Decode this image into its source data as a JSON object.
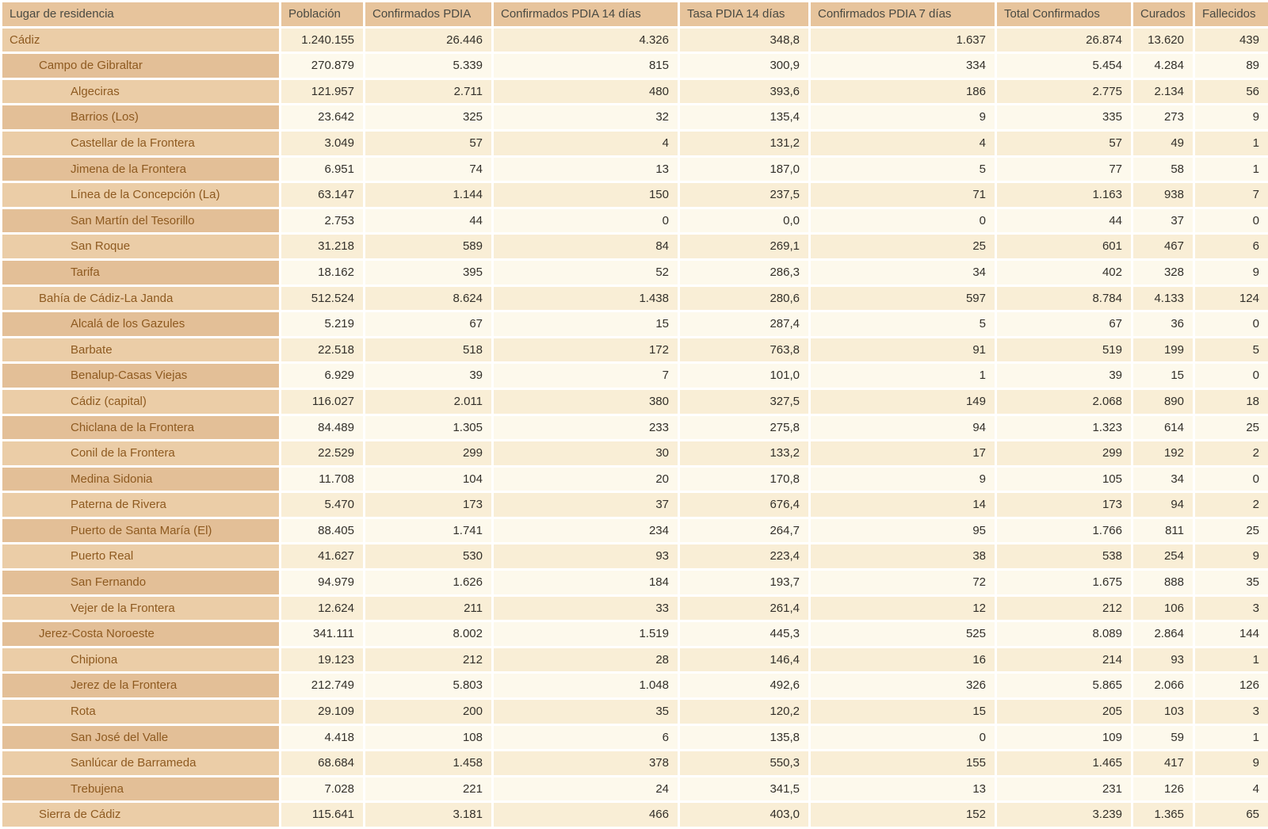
{
  "chart_data": {
    "type": "table",
    "columns": [
      "Lugar de residencia",
      "Población",
      "Confirmados PDIA",
      "Confirmados PDIA 14 días",
      "Tasa PDIA 14 días",
      "Confirmados PDIA 7 días",
      "Total Confirmados",
      "Curados",
      "Fallecidos"
    ],
    "rows": [
      {
        "name": "Cádiz",
        "level": 0,
        "values": [
          "1.240.155",
          "26.446",
          "4.326",
          "348,8",
          "1.637",
          "26.874",
          "13.620",
          "439"
        ]
      },
      {
        "name": "Campo de Gibraltar",
        "level": 1,
        "values": [
          "270.879",
          "5.339",
          "815",
          "300,9",
          "334",
          "5.454",
          "4.284",
          "89"
        ]
      },
      {
        "name": "Algeciras",
        "level": 2,
        "values": [
          "121.957",
          "2.711",
          "480",
          "393,6",
          "186",
          "2.775",
          "2.134",
          "56"
        ]
      },
      {
        "name": "Barrios (Los)",
        "level": 2,
        "values": [
          "23.642",
          "325",
          "32",
          "135,4",
          "9",
          "335",
          "273",
          "9"
        ]
      },
      {
        "name": "Castellar de la Frontera",
        "level": 2,
        "values": [
          "3.049",
          "57",
          "4",
          "131,2",
          "4",
          "57",
          "49",
          "1"
        ]
      },
      {
        "name": "Jimena de la Frontera",
        "level": 2,
        "values": [
          "6.951",
          "74",
          "13",
          "187,0",
          "5",
          "77",
          "58",
          "1"
        ]
      },
      {
        "name": "Línea de la Concepción (La)",
        "level": 2,
        "values": [
          "63.147",
          "1.144",
          "150",
          "237,5",
          "71",
          "1.163",
          "938",
          "7"
        ]
      },
      {
        "name": "San Martín del Tesorillo",
        "level": 2,
        "values": [
          "2.753",
          "44",
          "0",
          "0,0",
          "0",
          "44",
          "37",
          "0"
        ]
      },
      {
        "name": "San Roque",
        "level": 2,
        "values": [
          "31.218",
          "589",
          "84",
          "269,1",
          "25",
          "601",
          "467",
          "6"
        ]
      },
      {
        "name": "Tarifa",
        "level": 2,
        "values": [
          "18.162",
          "395",
          "52",
          "286,3",
          "34",
          "402",
          "328",
          "9"
        ]
      },
      {
        "name": "Bahía de Cádiz-La Janda",
        "level": 1,
        "values": [
          "512.524",
          "8.624",
          "1.438",
          "280,6",
          "597",
          "8.784",
          "4.133",
          "124"
        ]
      },
      {
        "name": "Alcalá de los Gazules",
        "level": 2,
        "values": [
          "5.219",
          "67",
          "15",
          "287,4",
          "5",
          "67",
          "36",
          "0"
        ]
      },
      {
        "name": "Barbate",
        "level": 2,
        "values": [
          "22.518",
          "518",
          "172",
          "763,8",
          "91",
          "519",
          "199",
          "5"
        ]
      },
      {
        "name": "Benalup-Casas Viejas",
        "level": 2,
        "values": [
          "6.929",
          "39",
          "7",
          "101,0",
          "1",
          "39",
          "15",
          "0"
        ]
      },
      {
        "name": "Cádiz (capital)",
        "level": 2,
        "values": [
          "116.027",
          "2.011",
          "380",
          "327,5",
          "149",
          "2.068",
          "890",
          "18"
        ]
      },
      {
        "name": "Chiclana de la Frontera",
        "level": 2,
        "values": [
          "84.489",
          "1.305",
          "233",
          "275,8",
          "94",
          "1.323",
          "614",
          "25"
        ]
      },
      {
        "name": "Conil de la Frontera",
        "level": 2,
        "values": [
          "22.529",
          "299",
          "30",
          "133,2",
          "17",
          "299",
          "192",
          "2"
        ]
      },
      {
        "name": "Medina Sidonia",
        "level": 2,
        "values": [
          "11.708",
          "104",
          "20",
          "170,8",
          "9",
          "105",
          "34",
          "0"
        ]
      },
      {
        "name": "Paterna de Rivera",
        "level": 2,
        "values": [
          "5.470",
          "173",
          "37",
          "676,4",
          "14",
          "173",
          "94",
          "2"
        ]
      },
      {
        "name": "Puerto de Santa María (El)",
        "level": 2,
        "values": [
          "88.405",
          "1.741",
          "234",
          "264,7",
          "95",
          "1.766",
          "811",
          "25"
        ]
      },
      {
        "name": "Puerto Real",
        "level": 2,
        "values": [
          "41.627",
          "530",
          "93",
          "223,4",
          "38",
          "538",
          "254",
          "9"
        ]
      },
      {
        "name": "San Fernando",
        "level": 2,
        "values": [
          "94.979",
          "1.626",
          "184",
          "193,7",
          "72",
          "1.675",
          "888",
          "35"
        ]
      },
      {
        "name": "Vejer de la Frontera",
        "level": 2,
        "values": [
          "12.624",
          "211",
          "33",
          "261,4",
          "12",
          "212",
          "106",
          "3"
        ]
      },
      {
        "name": "Jerez-Costa Noroeste",
        "level": 1,
        "values": [
          "341.111",
          "8.002",
          "1.519",
          "445,3",
          "525",
          "8.089",
          "2.864",
          "144"
        ]
      },
      {
        "name": "Chipiona",
        "level": 2,
        "values": [
          "19.123",
          "212",
          "28",
          "146,4",
          "16",
          "214",
          "93",
          "1"
        ]
      },
      {
        "name": "Jerez de la Frontera",
        "level": 2,
        "values": [
          "212.749",
          "5.803",
          "1.048",
          "492,6",
          "326",
          "5.865",
          "2.066",
          "126"
        ]
      },
      {
        "name": "Rota",
        "level": 2,
        "values": [
          "29.109",
          "200",
          "35",
          "120,2",
          "15",
          "205",
          "103",
          "3"
        ]
      },
      {
        "name": "San José del Valle",
        "level": 2,
        "values": [
          "4.418",
          "108",
          "6",
          "135,8",
          "0",
          "109",
          "59",
          "1"
        ]
      },
      {
        "name": "Sanlúcar de Barrameda",
        "level": 2,
        "values": [
          "68.684",
          "1.458",
          "378",
          "550,3",
          "155",
          "1.465",
          "417",
          "9"
        ]
      },
      {
        "name": "Trebujena",
        "level": 2,
        "values": [
          "7.028",
          "221",
          "24",
          "341,5",
          "13",
          "231",
          "126",
          "4"
        ]
      },
      {
        "name": "Sierra de Cádiz",
        "level": 1,
        "values": [
          "115.641",
          "3.181",
          "466",
          "403,0",
          "152",
          "3.239",
          "1.365",
          "65"
        ]
      }
    ],
    "layout": {
      "legend": "none",
      "grid": "white separators between all cells",
      "row_striping": "alternating; first data row uses darker cream for numbers and lighter tan for names",
      "hierarchy": "province > district > municipality shown by left indentation of first column"
    }
  },
  "colors": {
    "header_bg": "#e7c49c",
    "name_stripe_a": "#ebcda7",
    "name_stripe_b": "#e3bf97",
    "num_stripe_a": "#f9eed6",
    "num_stripe_b": "#fdf9ec",
    "name_text": "#8e5a20",
    "num_text": "#33302a",
    "header_text": "#4a4a42",
    "separator": "#ffffff"
  }
}
